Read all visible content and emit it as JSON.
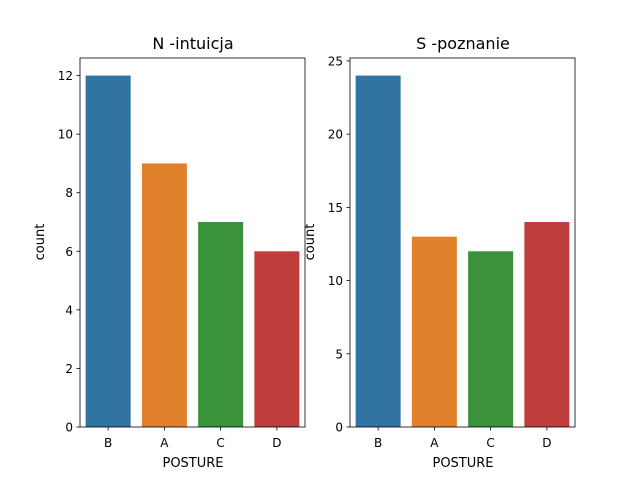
{
  "chart_data": [
    {
      "type": "bar",
      "title": "N -intuicja",
      "xlabel": "POSTURE",
      "ylabel": "count",
      "categories": [
        "B",
        "A",
        "C",
        "D"
      ],
      "values": [
        12,
        9,
        7,
        6
      ],
      "ylim": [
        0,
        12.6
      ],
      "yticks": [
        0,
        2,
        4,
        6,
        8,
        10,
        12
      ],
      "colors": [
        "#3274a1",
        "#e1812c",
        "#3a923a",
        "#c03d3e"
      ],
      "grid": false
    },
    {
      "type": "bar",
      "title": "S -poznanie",
      "xlabel": "POSTURE",
      "ylabel": "count",
      "categories": [
        "B",
        "A",
        "C",
        "D"
      ],
      "values": [
        24,
        13,
        12,
        14
      ],
      "ylim": [
        0,
        25.2
      ],
      "yticks": [
        0,
        5,
        10,
        15,
        20,
        25
      ],
      "colors": [
        "#3274a1",
        "#e1812c",
        "#3a923a",
        "#c03d3e"
      ],
      "grid": false
    }
  ]
}
